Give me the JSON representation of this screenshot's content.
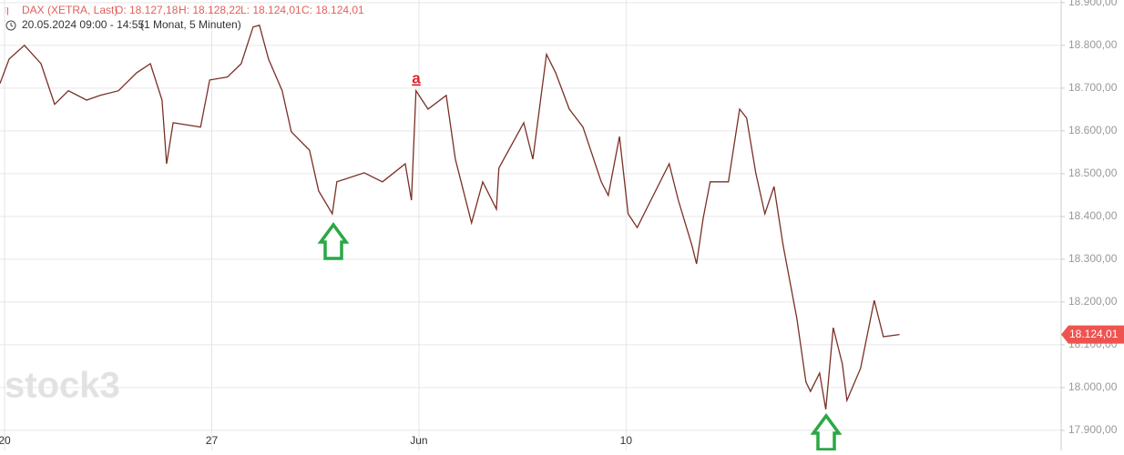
{
  "chart_data": {
    "type": "line",
    "title": "DAX (XETRA, Last)",
    "ohlc": [
      "O: 18.127,18",
      "H: 18.128,22",
      "L: 18.124,01",
      "C: 18.124,01"
    ],
    "period": "20.05.2024 09:00 - 14:55",
    "interval": "(1 Monat, 5 Minuten)",
    "annotation": "a",
    "watermark": "stock3",
    "x": [
      -0.11,
      0.11,
      0.48,
      0.88,
      1.21,
      1.54,
      1.98,
      2.31,
      2.75,
      3.19,
      3.52,
      3.8,
      3.91,
      4.07,
      4.73,
      4.95,
      5.38,
      5.71,
      6.0,
      6.15,
      6.37,
      6.7,
      6.92,
      7.36,
      7.58,
      7.91,
      8.02,
      8.68,
      9.12,
      9.67,
      9.82,
      9.93,
      10.22,
      10.66,
      10.88,
      11.27,
      11.54,
      11.87,
      11.93,
      12.53,
      12.75,
      13.08,
      13.3,
      13.63,
      13.96,
      14.4,
      14.57,
      14.84,
      15.05,
      15.27,
      15.6,
      16.04,
      16.26,
      16.59,
      16.7,
      16.86,
      17.03,
      17.47,
      17.74,
      17.91,
      18.13,
      18.35,
      18.57,
      18.79,
      19.12,
      19.34,
      19.45,
      19.67,
      19.82,
      20.0,
      20.22,
      20.33,
      20.66,
      20.99,
      21.21,
      21.6
    ],
    "series": [
      {
        "color": "#7a3026",
        "values": [
          18711,
          18768,
          18800,
          18757,
          18662,
          18694,
          18672,
          18683,
          18694,
          18736,
          18757,
          18672,
          18523,
          18619,
          18609,
          18719,
          18726,
          18757,
          18843,
          18847,
          18768,
          18694,
          18598,
          18555,
          18460,
          18406,
          18481,
          18502,
          18481,
          18523,
          18438,
          18694,
          18651,
          18683,
          18534,
          18385,
          18481,
          18417,
          18513,
          18619,
          18534,
          18779,
          18736,
          18651,
          18609,
          18481,
          18449,
          18587,
          18406,
          18374,
          18438,
          18523,
          18438,
          18332,
          18289,
          18396,
          18481,
          18481,
          18651,
          18630,
          18502,
          18406,
          18470,
          18332,
          18162,
          18013,
          17991,
          18034,
          17949,
          18140,
          18055,
          17970,
          18045,
          18204,
          18119,
          18124
        ]
      }
    ],
    "xlim": [
      -0.11,
      25.5
    ],
    "xticks": [
      {
        "value": 0,
        "label": "20"
      },
      {
        "value": 5,
        "label": "27"
      },
      {
        "value": 10,
        "label": "Jun"
      },
      {
        "value": 15,
        "label": "10"
      }
    ],
    "ylim": [
      17853,
      18906
    ],
    "yticks": [
      {
        "value": 17900,
        "label": "17.900,00"
      },
      {
        "value": 18000,
        "label": "18.000,00"
      },
      {
        "value": 18100,
        "label": "18.100,00"
      },
      {
        "value": 18200,
        "label": "18.200,00"
      },
      {
        "value": 18300,
        "label": "18.300,00"
      },
      {
        "value": 18400,
        "label": "18.400,00"
      },
      {
        "value": 18500,
        "label": "18.500,00"
      },
      {
        "value": 18600,
        "label": "18.600,00"
      },
      {
        "value": 18700,
        "label": "18.700,00"
      },
      {
        "value": 18800,
        "label": "18.800,00"
      },
      {
        "value": 18900,
        "label": "18.900,00"
      }
    ],
    "current_price": {
      "value": 18124.01,
      "label": "18.124,01"
    },
    "grid": true
  }
}
